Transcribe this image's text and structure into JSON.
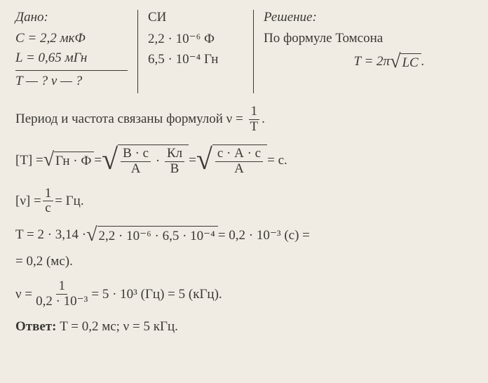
{
  "dano": {
    "header": "Дано:",
    "c_line": "C = 2,2 мкФ",
    "l_line": "L = 0,65 мГн",
    "question": "T — ?  ν — ?"
  },
  "si": {
    "header": "СИ",
    "c_value": "2,2 · 10⁻⁶ Ф",
    "l_value": "6,5 · 10⁻⁴ Гн"
  },
  "solution": {
    "header": "Решение:",
    "thomson_text": "По формуле Томсона",
    "thomson_formula_prefix": "T = 2π",
    "thomson_formula_sqrt": "LC",
    "thomson_formula_suffix": "."
  },
  "body": {
    "period_freq_text1": "Период и частота связаны формулой ν = ",
    "period_freq_num": "1",
    "period_freq_den": "T",
    "period_freq_suffix": ".",
    "dim_T_prefix": "[T] = ",
    "dim_T_sqrt1": "Гн · Ф",
    "dim_T_eq": " = ",
    "dim_T_frac1_num": "В · с",
    "dim_T_frac1_den": "А",
    "dim_T_dot": " · ",
    "dim_T_frac2_num": "Кл",
    "dim_T_frac2_den": "В",
    "dim_T_frac3_num": "с · А · с",
    "dim_T_frac3_den": "А",
    "dim_T_result": " = с.",
    "dim_nu_prefix": "[ν] = ",
    "dim_nu_num": "1",
    "dim_nu_den": "с",
    "dim_nu_result": " = Гц.",
    "T_calc_prefix": "T = 2 · 3,14 · ",
    "T_calc_sqrt": "2,2 · 10⁻⁶ · 6,5 · 10⁻⁴",
    "T_calc_result1": " = 0,2 · 10⁻³ (с) =",
    "T_calc_result2": "= 0,2 (мс).",
    "nu_calc_prefix": "ν = ",
    "nu_calc_num": "1",
    "nu_calc_den": "0,2 · 10⁻³",
    "nu_calc_result": " = 5 · 10³ (Гц) = 5 (кГц).",
    "answer_label": "Ответ:",
    "answer_text": " T = 0,2 мс; ν = 5 кГц."
  }
}
